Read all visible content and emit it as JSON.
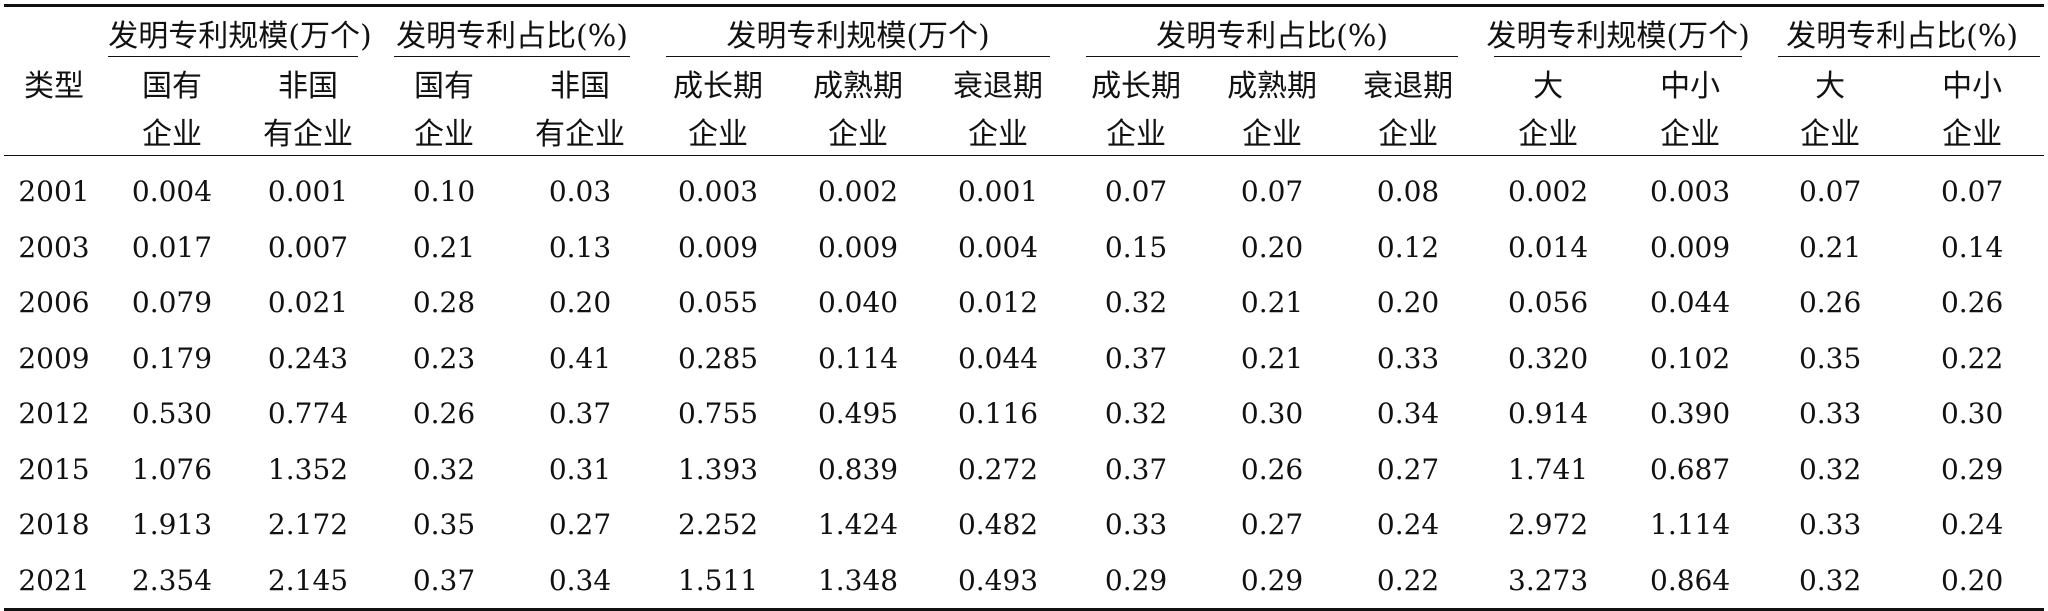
{
  "header": {
    "type_label": "类型",
    "groups": [
      "发明专利规模(万个)",
      "发明专利占比(%)",
      "发明专利规模(万个)",
      "发明专利占比(%)",
      "发明专利规模(万个)",
      "发明专利占比(%)"
    ],
    "sub_top": [
      "国有",
      "非国",
      "国有",
      "非国",
      "成长期",
      "成熟期",
      "衰退期",
      "成长期",
      "成熟期",
      "衰退期",
      "大",
      "中小",
      "大",
      "中小"
    ],
    "sub_bottom": [
      "企业",
      "有企业",
      "企业",
      "有企业",
      "企业",
      "企业",
      "企业",
      "企业",
      "企业",
      "企业",
      "企业",
      "企业",
      "企业",
      "企业"
    ]
  },
  "rows": [
    {
      "year": "2001",
      "values": [
        "0.004",
        "0.001",
        "0.10",
        "0.03",
        "0.003",
        "0.002",
        "0.001",
        "0.07",
        "0.07",
        "0.08",
        "0.002",
        "0.003",
        "0.07",
        "0.07"
      ]
    },
    {
      "year": "2003",
      "values": [
        "0.017",
        "0.007",
        "0.21",
        "0.13",
        "0.009",
        "0.009",
        "0.004",
        "0.15",
        "0.20",
        "0.12",
        "0.014",
        "0.009",
        "0.21",
        "0.14"
      ]
    },
    {
      "year": "2006",
      "values": [
        "0.079",
        "0.021",
        "0.28",
        "0.20",
        "0.055",
        "0.040",
        "0.012",
        "0.32",
        "0.21",
        "0.20",
        "0.056",
        "0.044",
        "0.26",
        "0.26"
      ]
    },
    {
      "year": "2009",
      "values": [
        "0.179",
        "0.243",
        "0.23",
        "0.41",
        "0.285",
        "0.114",
        "0.044",
        "0.37",
        "0.21",
        "0.33",
        "0.320",
        "0.102",
        "0.35",
        "0.22"
      ]
    },
    {
      "year": "2012",
      "values": [
        "0.530",
        "0.774",
        "0.26",
        "0.37",
        "0.755",
        "0.495",
        "0.116",
        "0.32",
        "0.30",
        "0.34",
        "0.914",
        "0.390",
        "0.33",
        "0.30"
      ]
    },
    {
      "year": "2015",
      "values": [
        "1.076",
        "1.352",
        "0.32",
        "0.31",
        "1.393",
        "0.839",
        "0.272",
        "0.37",
        "0.26",
        "0.27",
        "1.741",
        "0.687",
        "0.32",
        "0.29"
      ]
    },
    {
      "year": "2018",
      "values": [
        "1.913",
        "2.172",
        "0.35",
        "0.27",
        "2.252",
        "1.424",
        "0.482",
        "0.33",
        "0.27",
        "0.24",
        "2.972",
        "1.114",
        "0.33",
        "0.24"
      ]
    },
    {
      "year": "2021",
      "values": [
        "2.354",
        "2.145",
        "0.37",
        "0.34",
        "1.511",
        "1.348",
        "0.493",
        "0.29",
        "0.29",
        "0.22",
        "3.273",
        "0.864",
        "0.32",
        "0.20"
      ]
    }
  ]
}
